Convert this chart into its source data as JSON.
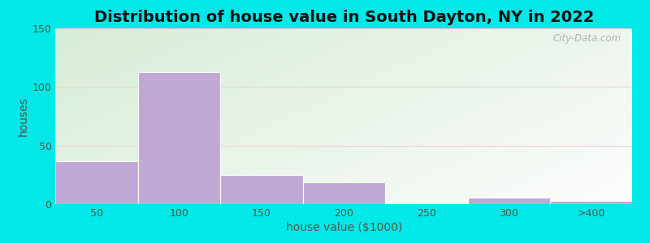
{
  "title": "Distribution of house value in South Dayton, NY in 2022",
  "xlabel": "house value ($1000)",
  "ylabel": "houses",
  "bar_labels": [
    "50",
    "100",
    "150",
    "200",
    "250",
    "300",
    ">400"
  ],
  "bar_heights": [
    37,
    113,
    25,
    19,
    0,
    6,
    3
  ],
  "bar_color": "#c0a8d4",
  "bar_edge_color": "#ffffff",
  "ylim": [
    0,
    150
  ],
  "yticks": [
    0,
    50,
    100,
    150
  ],
  "background_outer": "#00e8e8",
  "bg_color_topleft": "#d8edd8",
  "bg_color_topright": "#eaf5f0",
  "bg_color_bottomleft": "#e8f4e0",
  "bg_color_bottomright": "#f8fef8",
  "title_fontsize": 14,
  "axis_label_fontsize": 10,
  "tick_fontsize": 9,
  "watermark_text": "City-Data.com",
  "grid_color": "#e8c8c8",
  "title_color": "#111111",
  "label_color": "#555544"
}
